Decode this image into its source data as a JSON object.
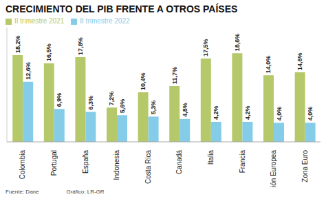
{
  "chart_data": {
    "type": "bar",
    "title": "CRECIMIENTO DEL PIB FRENTE A OTROS PAÍSES",
    "categories": [
      "Colombia",
      "Portugal",
      "España",
      "Indonesia",
      "Costa Rica",
      "Canadá",
      "Italia",
      "Francia",
      "Unión Europea",
      "Zona Euro"
    ],
    "series": [
      {
        "name": "II trimestre 2021",
        "color": "#b5c96a",
        "values": [
          18.2,
          16.5,
          17.8,
          7.2,
          10.4,
          11.7,
          17.5,
          18.6,
          14.0,
          14.6
        ],
        "value_labels": [
          "18,2%",
          "16,5%",
          "17,8%",
          "7,2%",
          "10,4%",
          "11,7%",
          "17,5%",
          "18,6%",
          "14,0%",
          "14,6%"
        ]
      },
      {
        "name": "II trimestre 2022",
        "color": "#85cce8",
        "values": [
          12.6,
          6.9,
          6.3,
          5.6,
          5.3,
          4.8,
          4.2,
          4.2,
          4.0,
          4.0
        ],
        "value_labels": [
          "12,6%",
          "6,9%",
          "6,3%",
          "5,6%",
          "5,3%",
          "4,8%",
          "4,2%",
          "4,2%",
          "4,0%",
          "4,0%"
        ]
      }
    ],
    "ylim": [
      0,
      24
    ],
    "grid": false,
    "legend": "top",
    "data_labels": true,
    "tick_labels": "x",
    "annotations": [
      "Fuente: Dane",
      "Gráfico: LR-GR"
    ]
  }
}
